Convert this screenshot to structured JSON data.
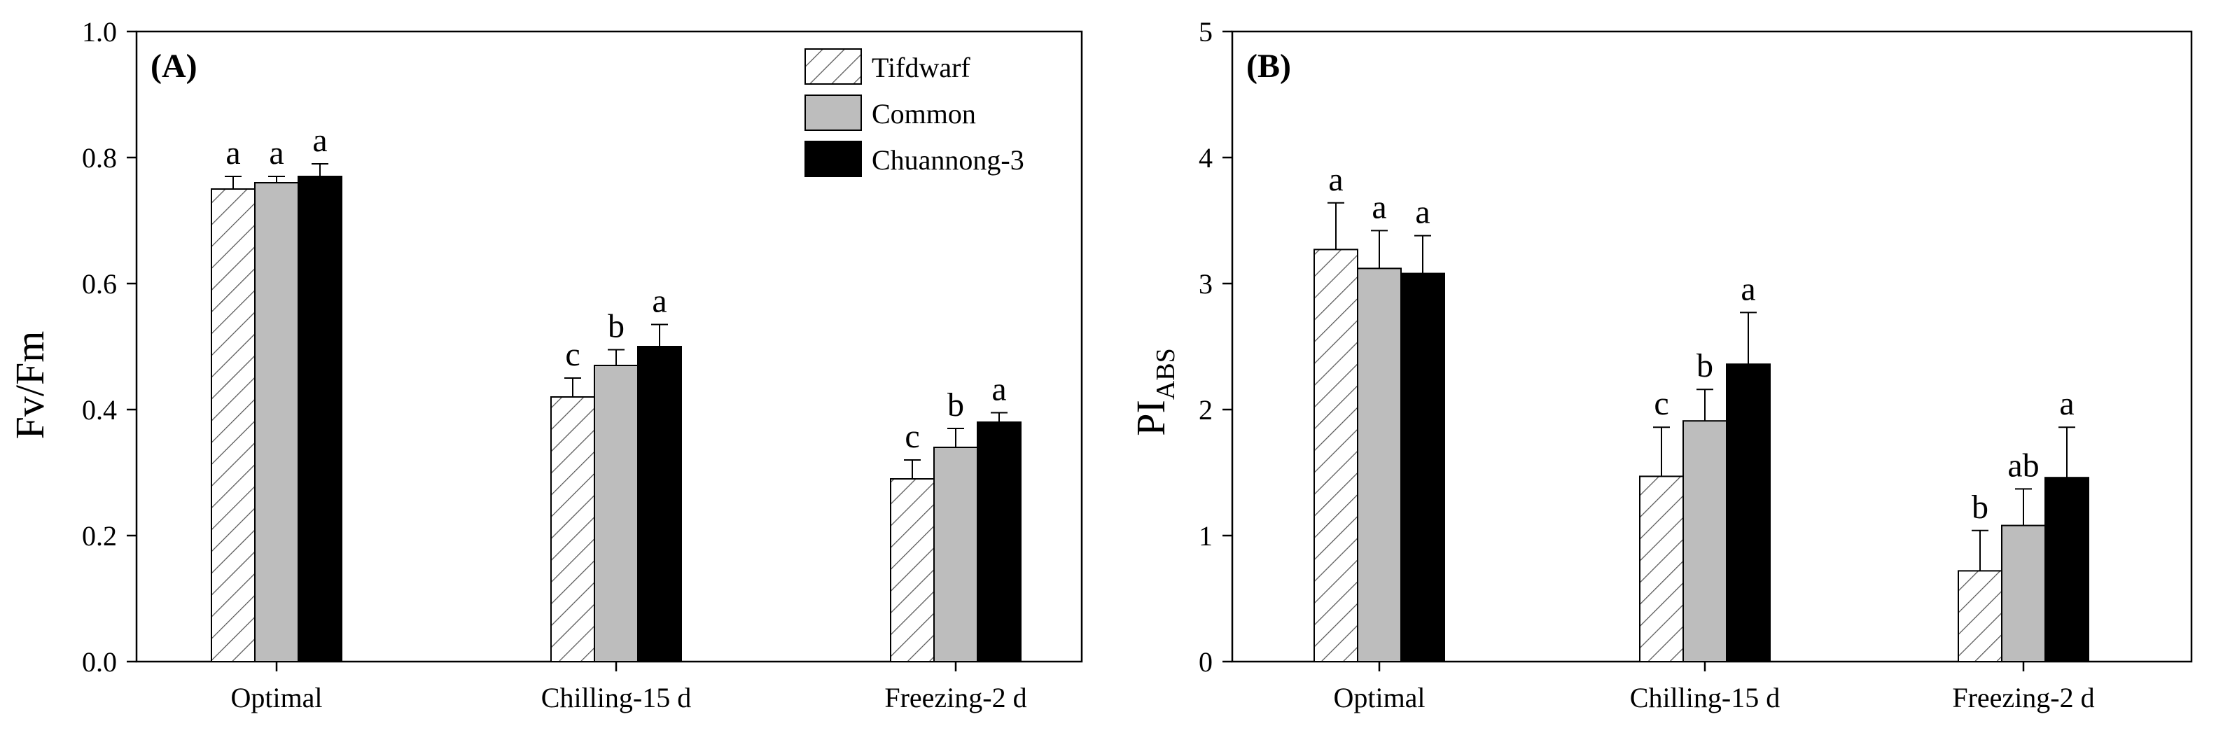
{
  "chart_data": [
    {
      "type": "bar",
      "panel_label": "(A)",
      "ylabel": "Fv/Fm",
      "ylim": [
        0,
        1.0
      ],
      "yticks": [
        "0.0",
        "0.2",
        "0.4",
        "0.6",
        "0.8",
        "1.0"
      ],
      "categories": [
        "Optimal",
        "Chilling-15 d",
        "Freezing-2 d"
      ],
      "series": [
        {
          "name": "Tifdwarf",
          "values": [
            0.75,
            0.42,
            0.29
          ],
          "errors": [
            0.02,
            0.03,
            0.03
          ],
          "letters": [
            "a",
            "c",
            "c"
          ],
          "fill": "hatch"
        },
        {
          "name": "Common",
          "values": [
            0.76,
            0.47,
            0.34
          ],
          "errors": [
            0.01,
            0.025,
            0.03
          ],
          "letters": [
            "a",
            "b",
            "b"
          ],
          "fill": "#bdbdbd"
        },
        {
          "name": "Chuannong-3",
          "values": [
            0.77,
            0.5,
            0.38
          ],
          "errors": [
            0.02,
            0.035,
            0.015
          ],
          "letters": [
            "a",
            "a",
            "a"
          ],
          "fill": "#000000"
        }
      ],
      "legend": [
        "Tifdwarf",
        "Common",
        "Chuannong-3"
      ]
    },
    {
      "type": "bar",
      "panel_label": "(B)",
      "ylabel_main": "PI",
      "ylabel_sub": "ABS",
      "ylim": [
        0,
        5
      ],
      "yticks": [
        "0",
        "1",
        "2",
        "3",
        "4",
        "5"
      ],
      "categories": [
        "Optimal",
        "Chilling-15 d",
        "Freezing-2 d"
      ],
      "series": [
        {
          "name": "Tifdwarf",
          "values": [
            3.27,
            1.47,
            0.72
          ],
          "errors": [
            0.37,
            0.39,
            0.32
          ],
          "letters": [
            "a",
            "c",
            "b"
          ],
          "fill": "hatch"
        },
        {
          "name": "Common",
          "values": [
            3.12,
            1.91,
            1.08
          ],
          "errors": [
            0.3,
            0.25,
            0.29
          ],
          "letters": [
            "a",
            "b",
            "ab"
          ],
          "fill": "#bdbdbd"
        },
        {
          "name": "Chuannong-3",
          "values": [
            3.08,
            2.36,
            1.46
          ],
          "errors": [
            0.3,
            0.41,
            0.4
          ],
          "letters": [
            "a",
            "a",
            "a"
          ],
          "fill": "#000000"
        }
      ]
    }
  ]
}
